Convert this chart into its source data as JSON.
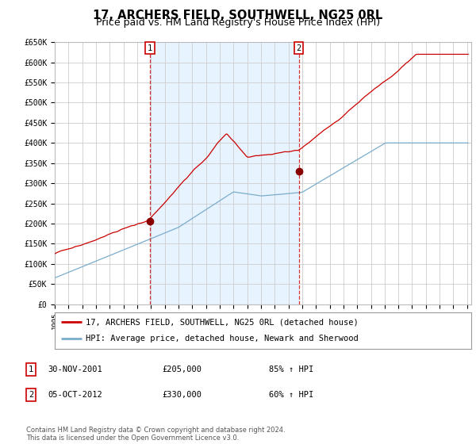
{
  "title": "17, ARCHERS FIELD, SOUTHWELL, NG25 0RL",
  "subtitle": "Price paid vs. HM Land Registry's House Price Index (HPI)",
  "title_fontsize": 10.5,
  "subtitle_fontsize": 9,
  "ylabel_ticks": [
    "£0",
    "£50K",
    "£100K",
    "£150K",
    "£200K",
    "£250K",
    "£300K",
    "£350K",
    "£400K",
    "£450K",
    "£500K",
    "£550K",
    "£600K",
    "£650K"
  ],
  "ylim": [
    0,
    650000
  ],
  "ytick_vals": [
    0,
    50000,
    100000,
    150000,
    200000,
    250000,
    300000,
    350000,
    400000,
    450000,
    500000,
    550000,
    600000,
    650000
  ],
  "xlim_start": 1995.0,
  "xlim_end": 2025.3,
  "transaction1_x": 2001.917,
  "transaction1_y": 205000,
  "transaction2_x": 2012.75,
  "transaction2_y": 330000,
  "line_color_price": "#cc0000",
  "line_color_hpi": "#7aadcc",
  "fill_color": "#ddeeff",
  "vline_color": "#cc0000",
  "grid_color": "#cccccc",
  "bg_color": "#ffffff",
  "legend_line1": "17, ARCHERS FIELD, SOUTHWELL, NG25 0RL (detached house)",
  "legend_line2": "HPI: Average price, detached house, Newark and Sherwood",
  "footer": "Contains HM Land Registry data © Crown copyright and database right 2024.\nThis data is licensed under the Open Government Licence v3.0.",
  "marker_color": "#880000"
}
